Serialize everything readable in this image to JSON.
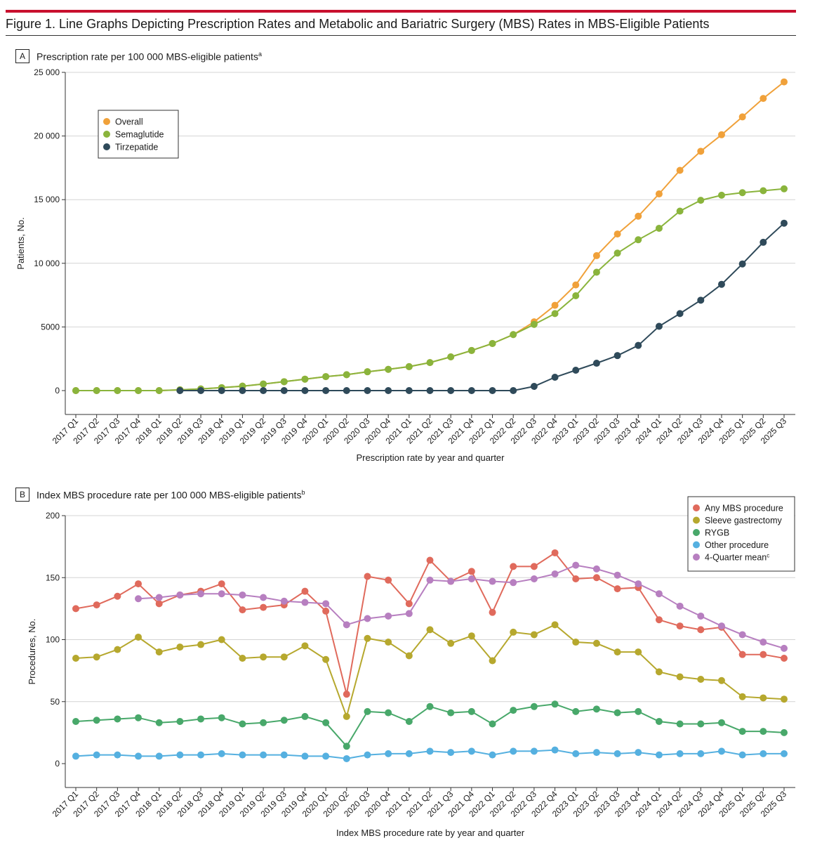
{
  "figure": {
    "title": "Figure 1. Line Graphs Depicting Prescription Rates and Metabolic and Bariatric Surgery (MBS) Rates in MBS-Eligible Patients",
    "accent_color": "#c8102e"
  },
  "panel_a": {
    "letter": "A",
    "heading": "Prescription rate per 100 000 MBS-eligible patients",
    "heading_sup": "a"
  },
  "panel_b": {
    "letter": "B",
    "heading": "Index MBS procedure rate per 100 000 MBS-eligible patients",
    "heading_sup": "b"
  },
  "chart_data": [
    {
      "type": "line",
      "xlabel": "Prescription rate by year and quarter",
      "ylabel": "Patients, No.",
      "ylim": [
        0,
        25000
      ],
      "yticks": [
        0,
        5000,
        10000,
        15000,
        20000,
        25000
      ],
      "ytick_labels": [
        "0",
        "5000",
        "10 000",
        "15 000",
        "20 000",
        "25 000"
      ],
      "grid": "horizontal",
      "legend_position": "top-left",
      "categories": [
        "2017 Q1",
        "2017 Q2",
        "2017 Q3",
        "2017 Q4",
        "2018 Q1",
        "2018 Q2",
        "2018 Q3",
        "2018 Q4",
        "2019 Q1",
        "2019 Q2",
        "2019 Q3",
        "2019 Q4",
        "2020 Q1",
        "2020 Q2",
        "2020 Q3",
        "2020 Q4",
        "2021 Q1",
        "2021 Q2",
        "2021 Q3",
        "2021 Q4",
        "2022 Q1",
        "2022 Q2",
        "2022 Q3",
        "2022 Q4",
        "2023 Q1",
        "2023 Q2",
        "2023 Q3",
        "2023 Q4",
        "2024 Q1",
        "2024 Q2",
        "2024 Q3",
        "2024 Q4",
        "2025 Q1",
        "2025 Q2",
        "2025 Q3"
      ],
      "series": [
        {
          "name": "Overall",
          "color": "#f0a13a",
          "values": [
            0,
            0,
            0,
            0,
            0,
            60,
            130,
            230,
            350,
            520,
            700,
            900,
            1100,
            1250,
            1480,
            1670,
            1880,
            2200,
            2650,
            3150,
            3700,
            4400,
            5400,
            6700,
            8300,
            10600,
            12300,
            13700,
            15450,
            17300,
            18800,
            20100,
            21500,
            22950,
            24250
          ]
        },
        {
          "name": "Semaglutide",
          "color": "#8ab43c",
          "values": [
            0,
            0,
            0,
            0,
            0,
            60,
            130,
            230,
            350,
            520,
            700,
            900,
            1100,
            1250,
            1480,
            1670,
            1880,
            2200,
            2650,
            3150,
            3700,
            4400,
            5200,
            6050,
            7450,
            9300,
            10800,
            11850,
            12750,
            14100,
            14950,
            15350,
            15550,
            15700,
            15850
          ]
        },
        {
          "name": "Tirzepatide",
          "color": "#2f4a5a",
          "values": [
            null,
            null,
            null,
            null,
            null,
            0,
            0,
            0,
            0,
            0,
            0,
            0,
            0,
            0,
            0,
            0,
            0,
            0,
            0,
            0,
            0,
            0,
            330,
            1050,
            1600,
            2150,
            2750,
            3550,
            5050,
            6050,
            7100,
            8350,
            9950,
            11650,
            13150
          ]
        }
      ]
    },
    {
      "type": "line",
      "xlabel": "Index MBS procedure rate by year and quarter",
      "ylabel": "Procedures, No.",
      "ylim": [
        0,
        200
      ],
      "yticks": [
        0,
        50,
        100,
        150,
        200
      ],
      "ytick_labels": [
        "0",
        "50",
        "100",
        "150",
        "200"
      ],
      "grid": "horizontal",
      "legend_position": "top-right",
      "categories": [
        "2017 Q1",
        "2017 Q2",
        "2017 Q3",
        "2017 Q4",
        "2018 Q1",
        "2018 Q2",
        "2018 Q3",
        "2018 Q4",
        "2019 Q1",
        "2019 Q2",
        "2019 Q3",
        "2019 Q4",
        "2020 Q1",
        "2020 Q2",
        "2020 Q3",
        "2020 Q4",
        "2021 Q1",
        "2021 Q2",
        "2021 Q3",
        "2021 Q4",
        "2022 Q1",
        "2022 Q2",
        "2022 Q3",
        "2022 Q4",
        "2023 Q1",
        "2023 Q2",
        "2023 Q3",
        "2023 Q4",
        "2024 Q1",
        "2024 Q2",
        "2024 Q3",
        "2024 Q4",
        "2025 Q1",
        "2025 Q2",
        "2025 Q3"
      ],
      "series": [
        {
          "name": "Any MBS procedure",
          "color": "#e06a5c",
          "values": [
            125,
            128,
            135,
            145,
            129,
            136,
            139,
            145,
            124,
            126,
            128,
            139,
            123,
            56,
            151,
            148,
            129,
            164,
            147,
            155,
            122,
            159,
            159,
            170,
            149,
            150,
            141,
            142,
            116,
            111,
            108,
            110,
            88,
            88,
            85
          ]
        },
        {
          "name": "Sleeve gastrectomy",
          "color": "#b6a82e",
          "values": [
            85,
            86,
            92,
            102,
            90,
            94,
            96,
            100,
            85,
            86,
            86,
            95,
            84,
            38,
            101,
            98,
            87,
            108,
            97,
            103,
            83,
            106,
            104,
            112,
            98,
            97,
            90,
            90,
            74,
            70,
            68,
            67,
            54,
            53,
            52
          ]
        },
        {
          "name": "RYGB",
          "color": "#48a86a",
          "values": [
            34,
            35,
            36,
            37,
            33,
            34,
            36,
            37,
            32,
            33,
            35,
            38,
            33,
            14,
            42,
            41,
            34,
            46,
            41,
            42,
            32,
            43,
            46,
            48,
            42,
            44,
            41,
            42,
            34,
            32,
            32,
            33,
            26,
            26,
            25
          ]
        },
        {
          "name": "Other procedure",
          "color": "#55b0e0",
          "values": [
            6,
            7,
            7,
            6,
            6,
            7,
            7,
            8,
            7,
            7,
            7,
            6,
            6,
            4,
            7,
            8,
            8,
            10,
            9,
            10,
            7,
            10,
            10,
            11,
            8,
            9,
            8,
            9,
            7,
            8,
            8,
            10,
            7,
            8,
            8
          ]
        },
        {
          "name": "4-Quarter mean",
          "name_sup": "c",
          "color": "#b77fc0",
          "values": [
            null,
            null,
            null,
            133,
            134,
            136,
            137,
            137,
            136,
            134,
            131,
            130,
            129,
            112,
            117,
            119,
            121,
            148,
            147,
            149,
            147,
            146,
            149,
            153,
            160,
            157,
            152,
            145,
            137,
            127,
            119,
            111,
            104,
            98,
            93
          ]
        }
      ]
    }
  ]
}
